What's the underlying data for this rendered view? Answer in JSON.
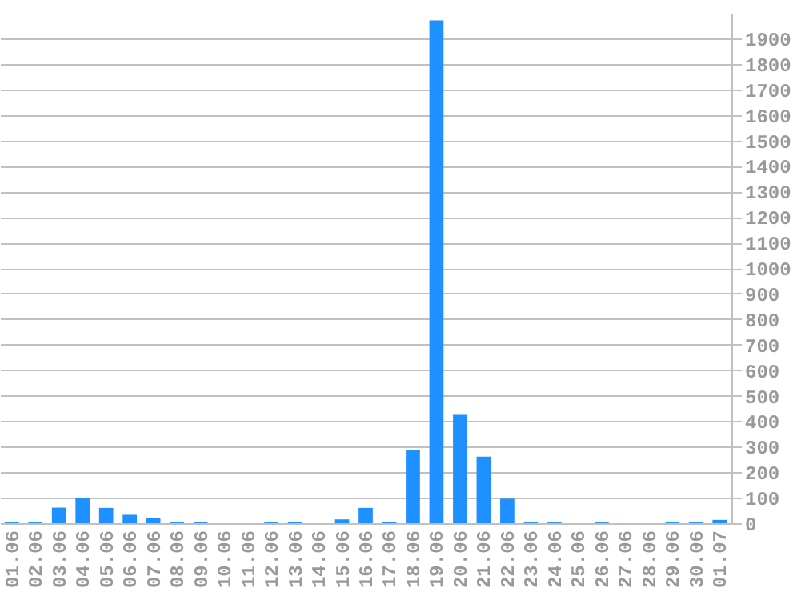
{
  "chart_data": {
    "type": "bar",
    "categories": [
      "01.06",
      "02.06",
      "03.06",
      "04.06",
      "05.06",
      "06.06",
      "07.06",
      "08.06",
      "09.06",
      "10.06",
      "11.06",
      "12.06",
      "13.06",
      "14.06",
      "15.06",
      "16.06",
      "17.06",
      "18.06",
      "19.06",
      "20.06",
      "21.06",
      "22.06",
      "23.06",
      "24.06",
      "25.06",
      "26.06",
      "27.06",
      "28.06",
      "29.06",
      "30.06",
      "01.07"
    ],
    "values": [
      3,
      3,
      61,
      99,
      60,
      33,
      20,
      3,
      3,
      0,
      0,
      3,
      3,
      0,
      15,
      60,
      3,
      287,
      1970,
      425,
      261,
      96,
      3,
      3,
      0,
      3,
      0,
      0,
      3,
      3,
      13
    ],
    "color": "#1e90ff",
    "ylim": [
      0,
      2000
    ],
    "yticks": [
      0,
      100,
      200,
      300,
      400,
      500,
      600,
      700,
      800,
      900,
      1000,
      1100,
      1200,
      1300,
      1400,
      1500,
      1600,
      1700,
      1800,
      1900
    ],
    "grid": "y"
  }
}
